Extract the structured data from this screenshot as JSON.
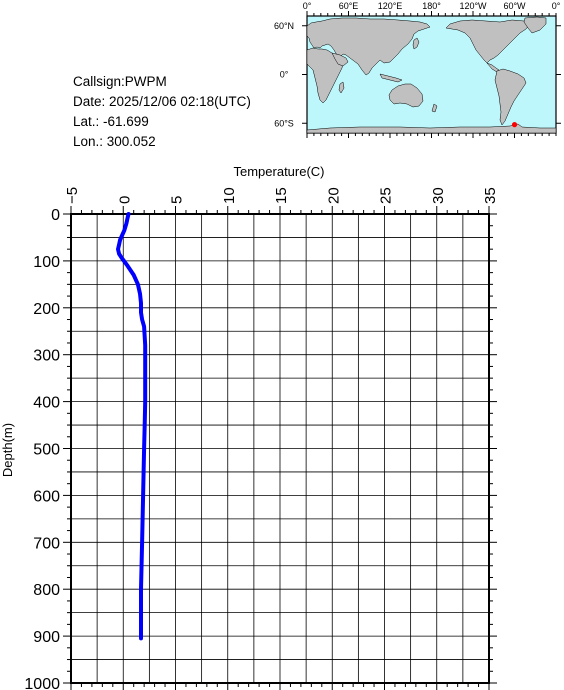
{
  "header": {
    "callsign_label": "Callsign:",
    "callsign": "PWPM",
    "date_label": "Date: ",
    "date": "2025/12/06 02:18(UTC)",
    "lat_label": "Lat.: ",
    "lat": "-61.699",
    "lon_label": "Lon.: ",
    "lon": "300.052"
  },
  "map": {
    "top_lon_labels": [
      "0°",
      "60°E",
      "120°E",
      "180°",
      "120°W",
      "60°W",
      "0°"
    ],
    "right_lat_labels": [
      "60°N",
      "0°",
      "60°S"
    ],
    "ocean_color": "#bdf7fb",
    "land_color": "#c0c0c0",
    "marker_color": "#ff0000",
    "marker_lat": -61.699,
    "marker_lon": 300.052
  },
  "chart_data": {
    "type": "line",
    "xlabel": "Temperature(C)",
    "ylabel": "Depth(m)",
    "xlim": [
      -5,
      35
    ],
    "ylim": [
      0,
      1000
    ],
    "y_inverted": true,
    "x_axis_position": "top",
    "x_ticks": [
      -5,
      0,
      5,
      10,
      15,
      20,
      25,
      30,
      35
    ],
    "y_ticks": [
      0,
      100,
      200,
      300,
      400,
      500,
      600,
      700,
      800,
      900,
      1000
    ],
    "grid": true,
    "line_color": "#0000ff",
    "series": [
      {
        "x": [
          0.5,
          0.4,
          0.3,
          0.1,
          -0.1,
          -0.3,
          -0.4,
          -0.5,
          -0.4,
          -0.1,
          0.4,
          1.0,
          1.4,
          1.6,
          1.7,
          1.7,
          1.8,
          2.0,
          2.1,
          2.1,
          2.1,
          2.05,
          2.0,
          1.9,
          1.8,
          1.7,
          1.7
        ],
        "y": [
          0,
          10,
          20,
          35,
          45,
          55,
          65,
          75,
          85,
          95,
          110,
          130,
          150,
          170,
          190,
          210,
          225,
          240,
          280,
          350,
          400,
          450,
          500,
          600,
          700,
          800,
          905
        ]
      }
    ]
  }
}
